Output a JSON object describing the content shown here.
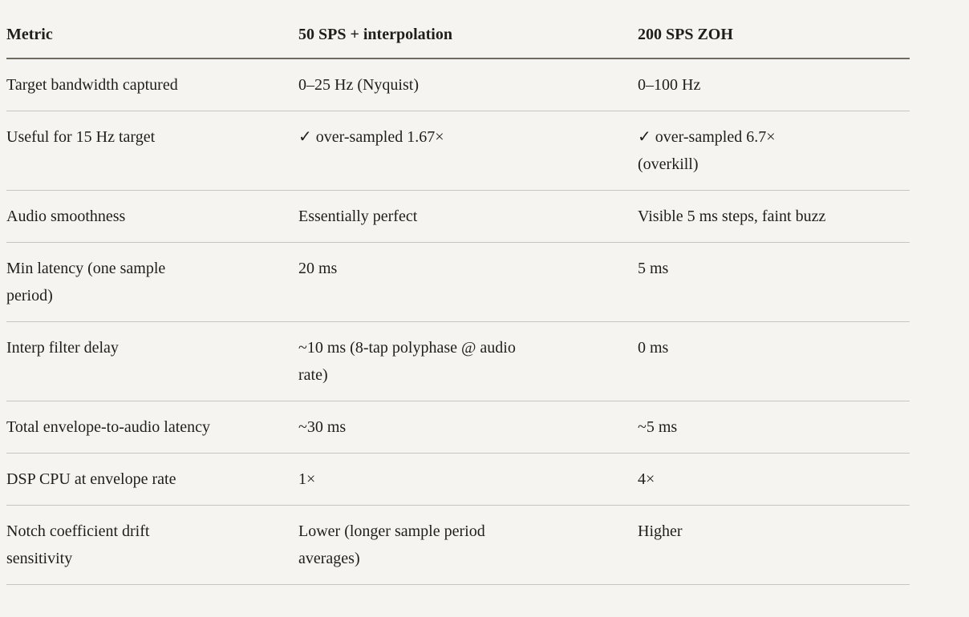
{
  "table": {
    "columns": [
      "Metric",
      "50 SPS + interpolation",
      "200 SPS ZOH"
    ],
    "rows": [
      [
        "Target bandwidth captured",
        "0–25 Hz (Nyquist)",
        "0–100 Hz"
      ],
      [
        "Useful for 15 Hz target",
        "✓ over-sampled 1.67×",
        "✓ over-sampled 6.7×\n(overkill)"
      ],
      [
        "Audio smoothness",
        "Essentially perfect",
        "Visible 5 ms steps, faint buzz"
      ],
      [
        "Min latency (one sample\nperiod)",
        "20 ms",
        "5 ms"
      ],
      [
        "Interp filter delay",
        "~10 ms (8-tap polyphase @ audio\nrate)",
        "0 ms"
      ],
      [
        "Total envelope-to-audio latency",
        "~30 ms",
        "~5 ms"
      ],
      [
        "DSP CPU at envelope rate",
        "1×",
        "4×"
      ],
      [
        "Notch coefficient drift\nsensitivity",
        "Lower (longer sample period\naverages)",
        "Higher"
      ]
    ]
  },
  "colors": {
    "background": "#f5f4f1",
    "text": "#1f1e1b",
    "header_rule": "#6f6b63",
    "row_rule": "#c9c6c0"
  }
}
